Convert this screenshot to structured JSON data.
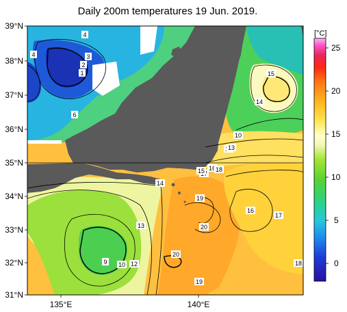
{
  "title": "Daily 200m temperatures 19 Jun. 2019.",
  "map": {
    "lat_labels": [
      "39°N",
      "38°N",
      "37°N",
      "36°N",
      "35°N",
      "34°N",
      "33°N",
      "32°N",
      "31°N"
    ],
    "lon_labels": [
      "135°E",
      "140°E"
    ],
    "land_color": "#5a5a5a",
    "missing_color": "#ffffff",
    "contour_labels": [
      {
        "id": "c4a",
        "text": "4"
      },
      {
        "id": "c4b",
        "text": "4"
      },
      {
        "id": "c3",
        "text": "3"
      },
      {
        "id": "c2",
        "text": "2"
      },
      {
        "id": "c1",
        "text": "1"
      },
      {
        "id": "c6",
        "text": "6"
      },
      {
        "id": "c15",
        "text": "15"
      },
      {
        "id": "c14a",
        "text": "14"
      },
      {
        "id": "c10",
        "text": "10"
      },
      {
        "id": "c12",
        "text": "12"
      },
      {
        "id": "c13a",
        "text": "13"
      },
      {
        "id": "c16a",
        "text": "16"
      },
      {
        "id": "c17a",
        "text": "17"
      },
      {
        "id": "c18a",
        "text": "18"
      },
      {
        "id": "c14b",
        "text": "14"
      },
      {
        "id": "c15b",
        "text": "15"
      },
      {
        "id": "c19a",
        "text": "19"
      },
      {
        "id": "c16b",
        "text": "16"
      },
      {
        "id": "c17b",
        "text": "17"
      },
      {
        "id": "c20a",
        "text": "20"
      },
      {
        "id": "c13b",
        "text": "13"
      },
      {
        "id": "c9",
        "text": "9"
      },
      {
        "id": "c10b",
        "text": "10"
      },
      {
        "id": "c12b",
        "text": "12"
      },
      {
        "id": "c20b",
        "text": "20"
      },
      {
        "id": "c19b",
        "text": "19"
      },
      {
        "id": "c18b",
        "text": "18"
      }
    ]
  },
  "colorbar": {
    "unit": "[°C]",
    "ticks": [
      "25",
      "20",
      "15",
      "10",
      "5",
      "0"
    ],
    "min": -2,
    "max": 26,
    "colors": [
      "#2a0fa0",
      "#1e3cd8",
      "#1e78f0",
      "#28b4f0",
      "#28d2c8",
      "#32d278",
      "#5ad232",
      "#a0e632",
      "#dcf078",
      "#ffffc8",
      "#ffe650",
      "#ffb41e",
      "#ff7814",
      "#ff2814",
      "#e6285a",
      "#ff50c8",
      "#ffb4f0"
    ]
  }
}
